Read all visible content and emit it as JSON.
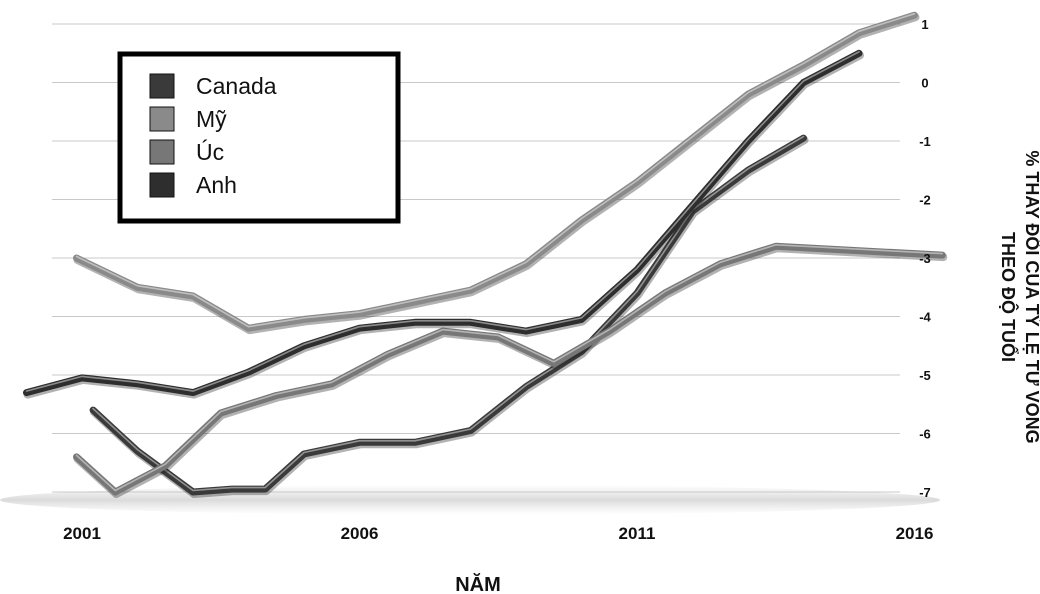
{
  "chart_data": {
    "type": "line",
    "title": "",
    "xlabel": "NĂM",
    "ylabel": "% THAY ĐỔI CỦA TỶ LỆ TỬ VONG THEO ĐỘ TUỔI",
    "ylabel_lines": [
      "% THAY ĐỔI CỦA TỶ LỆ TỬ VONG",
      "THEO ĐỘ TUỔI"
    ],
    "xlim": [
      2001,
      2016
    ],
    "ylim": [
      -7,
      1
    ],
    "x_ticks": [
      "2001",
      "2006",
      "2011",
      "2016"
    ],
    "y_ticks": [
      "1",
      "0",
      "-1",
      "-2",
      "-3",
      "-4",
      "-5",
      "-6",
      "-7"
    ],
    "grid": true,
    "legend_position": "top-left",
    "series": [
      {
        "name": "Canada",
        "color": "#3a3a3a",
        "x": [
          2001.2,
          2002,
          2003,
          2003.7,
          2004.3,
          2005,
          2006,
          2006.5,
          2007,
          2008,
          2009,
          2010,
          2011,
          2012,
          2013,
          2014,
          2015,
          2016,
          2016.8
        ],
        "y": [
          -5.6,
          -6.3,
          -7.0,
          -6.95,
          -6.95,
          -6.35,
          -6.15,
          -6.15,
          -6.15,
          -5.95,
          -5.2,
          -4.6,
          -3.6,
          -2.2,
          -1.5,
          -0.95,
          null,
          null,
          null
        ]
      },
      {
        "name": "Mỹ",
        "color": "#8a8a8a",
        "x": [
          2000.9,
          2002,
          2003,
          2004,
          2005,
          2006,
          2007,
          2008,
          2009,
          2010,
          2011,
          2012,
          2013,
          2014,
          2015,
          2016,
          2016.7
        ],
        "y": [
          -3.0,
          -3.5,
          -3.65,
          -4.2,
          -4.05,
          -3.95,
          -3.75,
          -3.55,
          -3.1,
          -2.35,
          -1.7,
          -0.95,
          -0.2,
          0.3,
          0.85,
          1.15,
          null
        ]
      },
      {
        "name": "Úc",
        "color": "#777777",
        "x": [
          2000.9,
          2001.6,
          2002.5,
          2003.5,
          2004.5,
          2005.5,
          2006.5,
          2007.5,
          2008.5,
          2009.5,
          2010.5,
          2011.5,
          2012.5,
          2013.5,
          2014.5,
          2015.5,
          2016.5
        ],
        "y": [
          -6.4,
          -7.0,
          -6.55,
          -5.65,
          -5.35,
          -5.15,
          -4.65,
          -4.25,
          -4.35,
          -4.8,
          -4.25,
          -3.6,
          -3.1,
          -2.8,
          -2.85,
          -2.9,
          -2.95
        ]
      },
      {
        "name": "Anh",
        "color": "#2e2e2e",
        "x": [
          2000.0,
          2001,
          2002,
          2003,
          2004,
          2005,
          2006,
          2007,
          2008,
          2009,
          2010,
          2011,
          2012,
          2013,
          2014,
          2015,
          2016,
          2016.8
        ],
        "y": [
          -5.3,
          -5.05,
          -5.15,
          -5.3,
          -4.95,
          -4.5,
          -4.2,
          -4.1,
          -4.1,
          -4.25,
          -4.05,
          -3.2,
          -2.1,
          -1.0,
          0.0,
          0.5,
          null,
          null
        ]
      }
    ]
  }
}
